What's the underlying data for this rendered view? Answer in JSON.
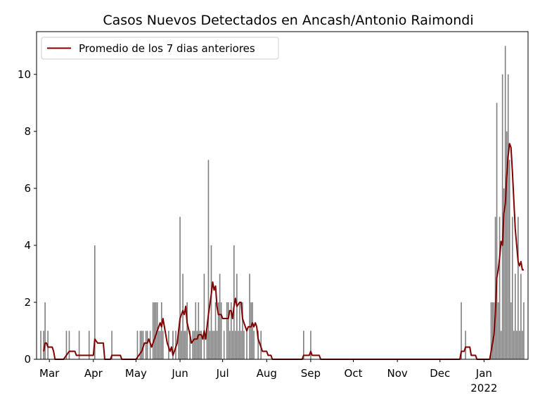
{
  "chart_data": {
    "type": "bar",
    "title": "Casos Nuevos Detectados en Ancash/Antonio Raimondi",
    "xlabel": "",
    "ylabel": "",
    "x_range": [
      "2021-02-20",
      "2022-02-01"
    ],
    "ylim": [
      0,
      11.5
    ],
    "y_ticks": [
      0,
      2,
      4,
      6,
      8,
      10
    ],
    "x_ticks": [
      {
        "date": "2021-03-01",
        "label": "Mar",
        "sub": ""
      },
      {
        "date": "2021-04-01",
        "label": "Apr",
        "sub": ""
      },
      {
        "date": "2021-05-01",
        "label": "May",
        "sub": ""
      },
      {
        "date": "2021-06-01",
        "label": "Jun",
        "sub": ""
      },
      {
        "date": "2021-07-01",
        "label": "Jul",
        "sub": ""
      },
      {
        "date": "2021-08-01",
        "label": "Aug",
        "sub": ""
      },
      {
        "date": "2021-09-01",
        "label": "Sep",
        "sub": ""
      },
      {
        "date": "2021-10-01",
        "label": "Oct",
        "sub": ""
      },
      {
        "date": "2021-11-01",
        "label": "Nov",
        "sub": ""
      },
      {
        "date": "2021-12-01",
        "label": "Dec",
        "sub": ""
      },
      {
        "date": "2022-01-01",
        "label": "Jan",
        "sub": "2022"
      }
    ],
    "grid": false,
    "legend_position": "top-left",
    "bar_color": "#808080",
    "line_color": "#800000",
    "series": [
      {
        "name": "",
        "kind": "bar",
        "points": [
          [
            "2021-02-23",
            1
          ],
          [
            "2021-02-25",
            1
          ],
          [
            "2021-02-26",
            2
          ],
          [
            "2021-02-28",
            1
          ],
          [
            "2021-03-13",
            1
          ],
          [
            "2021-03-15",
            1
          ],
          [
            "2021-03-22",
            1
          ],
          [
            "2021-03-29",
            1
          ],
          [
            "2021-04-02",
            4
          ],
          [
            "2021-04-14",
            1
          ],
          [
            "2021-05-02",
            1
          ],
          [
            "2021-05-04",
            1
          ],
          [
            "2021-05-05",
            1
          ],
          [
            "2021-05-06",
            1
          ],
          [
            "2021-05-08",
            1
          ],
          [
            "2021-05-09",
            1
          ],
          [
            "2021-05-11",
            1
          ],
          [
            "2021-05-13",
            2
          ],
          [
            "2021-05-14",
            2
          ],
          [
            "2021-05-15",
            2
          ],
          [
            "2021-05-16",
            2
          ],
          [
            "2021-05-17",
            1
          ],
          [
            "2021-05-18",
            1
          ],
          [
            "2021-05-19",
            2
          ],
          [
            "2021-05-20",
            1
          ],
          [
            "2021-05-24",
            1
          ],
          [
            "2021-05-27",
            1
          ],
          [
            "2021-05-29",
            1
          ],
          [
            "2021-05-31",
            1
          ],
          [
            "2021-06-01",
            5
          ],
          [
            "2021-06-02",
            1
          ],
          [
            "2021-06-03",
            3
          ],
          [
            "2021-06-04",
            1
          ],
          [
            "2021-06-05",
            1
          ],
          [
            "2021-06-06",
            2
          ],
          [
            "2021-06-08",
            1
          ],
          [
            "2021-06-10",
            1
          ],
          [
            "2021-06-11",
            1
          ],
          [
            "2021-06-12",
            2
          ],
          [
            "2021-06-13",
            1
          ],
          [
            "2021-06-14",
            2
          ],
          [
            "2021-06-15",
            1
          ],
          [
            "2021-06-16",
            1
          ],
          [
            "2021-06-18",
            3
          ],
          [
            "2021-06-20",
            1
          ],
          [
            "2021-06-21",
            7
          ],
          [
            "2021-06-22",
            1
          ],
          [
            "2021-06-23",
            4
          ],
          [
            "2021-06-24",
            1
          ],
          [
            "2021-06-25",
            1
          ],
          [
            "2021-06-26",
            2
          ],
          [
            "2021-06-27",
            1
          ],
          [
            "2021-06-28",
            2
          ],
          [
            "2021-06-29",
            3
          ],
          [
            "2021-06-30",
            2
          ],
          [
            "2021-07-02",
            1
          ],
          [
            "2021-07-04",
            2
          ],
          [
            "2021-07-05",
            2
          ],
          [
            "2021-07-06",
            1
          ],
          [
            "2021-07-07",
            2
          ],
          [
            "2021-07-08",
            1
          ],
          [
            "2021-07-09",
            4
          ],
          [
            "2021-07-10",
            1
          ],
          [
            "2021-07-11",
            3
          ],
          [
            "2021-07-12",
            1
          ],
          [
            "2021-07-13",
            2
          ],
          [
            "2021-07-14",
            1
          ],
          [
            "2021-07-15",
            2
          ],
          [
            "2021-07-16",
            1
          ],
          [
            "2021-07-18",
            1
          ],
          [
            "2021-07-20",
            3
          ],
          [
            "2021-07-21",
            2
          ],
          [
            "2021-07-22",
            2
          ],
          [
            "2021-07-23",
            1
          ],
          [
            "2021-07-26",
            1
          ],
          [
            "2021-07-28",
            1
          ],
          [
            "2021-08-27",
            1
          ],
          [
            "2021-09-01",
            1
          ],
          [
            "2021-12-16",
            2
          ],
          [
            "2021-12-19",
            1
          ],
          [
            "2022-01-06",
            2
          ],
          [
            "2022-01-07",
            2
          ],
          [
            "2022-01-08",
            2
          ],
          [
            "2022-01-09",
            5
          ],
          [
            "2022-01-10",
            9
          ],
          [
            "2022-01-11",
            2
          ],
          [
            "2022-01-12",
            5
          ],
          [
            "2022-01-13",
            1
          ],
          [
            "2022-01-14",
            10
          ],
          [
            "2022-01-15",
            6
          ],
          [
            "2022-01-16",
            11
          ],
          [
            "2022-01-17",
            8
          ],
          [
            "2022-01-18",
            10
          ],
          [
            "2022-01-19",
            7
          ],
          [
            "2022-01-20",
            2
          ],
          [
            "2022-01-21",
            5
          ],
          [
            "2022-01-22",
            1
          ],
          [
            "2022-01-23",
            3
          ],
          [
            "2022-01-24",
            1
          ],
          [
            "2022-01-25",
            5
          ],
          [
            "2022-01-26",
            1
          ],
          [
            "2022-01-27",
            3
          ],
          [
            "2022-01-28",
            1
          ],
          [
            "2022-01-29",
            2
          ]
        ]
      },
      {
        "name": "Promedio de los 7 dias anteriores",
        "kind": "line",
        "points": [
          [
            "2021-02-25",
            0.28
          ],
          [
            "2021-02-26",
            0.57
          ],
          [
            "2021-02-27",
            0.57
          ],
          [
            "2021-02-28",
            0.43
          ],
          [
            "2021-03-03",
            0.43
          ],
          [
            "2021-03-04",
            0.28
          ],
          [
            "2021-03-05",
            0
          ],
          [
            "2021-03-11",
            0
          ],
          [
            "2021-03-13",
            0.14
          ],
          [
            "2021-03-15",
            0.28
          ],
          [
            "2021-03-19",
            0.28
          ],
          [
            "2021-03-20",
            0.14
          ],
          [
            "2021-04-01",
            0.14
          ],
          [
            "2021-04-02",
            0.71
          ],
          [
            "2021-04-04",
            0.57
          ],
          [
            "2021-04-08",
            0.57
          ],
          [
            "2021-04-09",
            0
          ],
          [
            "2021-04-13",
            0
          ],
          [
            "2021-04-14",
            0.14
          ],
          [
            "2021-04-20",
            0.14
          ],
          [
            "2021-04-21",
            0
          ],
          [
            "2021-05-01",
            0
          ],
          [
            "2021-05-03",
            0.14
          ],
          [
            "2021-05-05",
            0.28
          ],
          [
            "2021-05-07",
            0.57
          ],
          [
            "2021-05-09",
            0.57
          ],
          [
            "2021-05-10",
            0.71
          ],
          [
            "2021-05-12",
            0.43
          ],
          [
            "2021-05-14",
            0.71
          ],
          [
            "2021-05-16",
            1.0
          ],
          [
            "2021-05-18",
            1.28
          ],
          [
            "2021-05-19",
            1.14
          ],
          [
            "2021-05-20",
            1.43
          ],
          [
            "2021-05-21",
            1.14
          ],
          [
            "2021-05-23",
            0.57
          ],
          [
            "2021-05-25",
            0.28
          ],
          [
            "2021-05-26",
            0.43
          ],
          [
            "2021-05-27",
            0.14
          ],
          [
            "2021-05-28",
            0.28
          ],
          [
            "2021-05-30",
            0.57
          ],
          [
            "2021-06-01",
            1.43
          ],
          [
            "2021-06-03",
            1.71
          ],
          [
            "2021-06-04",
            1.57
          ],
          [
            "2021-06-05",
            1.86
          ],
          [
            "2021-06-06",
            1.28
          ],
          [
            "2021-06-08",
            0.86
          ],
          [
            "2021-06-09",
            0.57
          ],
          [
            "2021-06-11",
            0.71
          ],
          [
            "2021-06-13",
            0.71
          ],
          [
            "2021-06-14",
            0.86
          ],
          [
            "2021-06-16",
            0.86
          ],
          [
            "2021-06-17",
            0.71
          ],
          [
            "2021-06-18",
            1.0
          ],
          [
            "2021-06-19",
            0.71
          ],
          [
            "2021-06-21",
            1.57
          ],
          [
            "2021-06-23",
            2.28
          ],
          [
            "2021-06-24",
            2.71
          ],
          [
            "2021-06-25",
            2.43
          ],
          [
            "2021-06-26",
            2.57
          ],
          [
            "2021-06-27",
            1.86
          ],
          [
            "2021-06-28",
            1.57
          ],
          [
            "2021-06-30",
            1.57
          ],
          [
            "2021-07-01",
            1.43
          ],
          [
            "2021-07-05",
            1.43
          ],
          [
            "2021-07-06",
            1.71
          ],
          [
            "2021-07-07",
            1.71
          ],
          [
            "2021-07-08",
            1.43
          ],
          [
            "2021-07-09",
            1.86
          ],
          [
            "2021-07-10",
            2.14
          ],
          [
            "2021-07-11",
            1.86
          ],
          [
            "2021-07-13",
            2.0
          ],
          [
            "2021-07-14",
            2.0
          ],
          [
            "2021-07-15",
            1.43
          ],
          [
            "2021-07-17",
            1.14
          ],
          [
            "2021-07-18",
            1.0
          ],
          [
            "2021-07-19",
            1.14
          ],
          [
            "2021-07-21",
            1.14
          ],
          [
            "2021-07-22",
            1.28
          ],
          [
            "2021-07-23",
            1.14
          ],
          [
            "2021-07-24",
            1.28
          ],
          [
            "2021-07-25",
            1.14
          ],
          [
            "2021-07-26",
            0.71
          ],
          [
            "2021-07-28",
            0.43
          ],
          [
            "2021-07-29",
            0.28
          ],
          [
            "2021-08-01",
            0.28
          ],
          [
            "2021-08-02",
            0.14
          ],
          [
            "2021-08-04",
            0.14
          ],
          [
            "2021-08-05",
            0
          ],
          [
            "2021-08-26",
            0
          ],
          [
            "2021-08-27",
            0.14
          ],
          [
            "2021-08-31",
            0.14
          ],
          [
            "2021-09-01",
            0.28
          ],
          [
            "2021-09-02",
            0.14
          ],
          [
            "2021-09-03",
            0.14
          ],
          [
            "2021-09-07",
            0.14
          ],
          [
            "2021-09-08",
            0
          ],
          [
            "2021-12-15",
            0
          ],
          [
            "2021-12-16",
            0.28
          ],
          [
            "2021-12-18",
            0.28
          ],
          [
            "2021-12-19",
            0.43
          ],
          [
            "2021-12-22",
            0.43
          ],
          [
            "2021-12-23",
            0.14
          ],
          [
            "2021-12-26",
            0.14
          ],
          [
            "2021-12-27",
            0
          ],
          [
            "2022-01-05",
            0
          ],
          [
            "2022-01-06",
            0.28
          ],
          [
            "2022-01-07",
            0.57
          ],
          [
            "2022-01-08",
            0.86
          ],
          [
            "2022-01-09",
            1.57
          ],
          [
            "2022-01-10",
            2.86
          ],
          [
            "2022-01-11",
            3.14
          ],
          [
            "2022-01-12",
            3.57
          ],
          [
            "2022-01-13",
            4.14
          ],
          [
            "2022-01-14",
            4.0
          ],
          [
            "2022-01-15",
            5.14
          ],
          [
            "2022-01-16",
            5.43
          ],
          [
            "2022-01-17",
            6.43
          ],
          [
            "2022-01-18",
            7.14
          ],
          [
            "2022-01-19",
            7.57
          ],
          [
            "2022-01-20",
            7.43
          ],
          [
            "2022-01-21",
            6.57
          ],
          [
            "2022-01-22",
            5.57
          ],
          [
            "2022-01-23",
            4.57
          ],
          [
            "2022-01-24",
            4.0
          ],
          [
            "2022-01-25",
            3.43
          ],
          [
            "2022-01-26",
            3.28
          ],
          [
            "2022-01-27",
            3.43
          ],
          [
            "2022-01-28",
            3.14
          ],
          [
            "2022-01-29",
            3.14
          ]
        ]
      }
    ]
  }
}
